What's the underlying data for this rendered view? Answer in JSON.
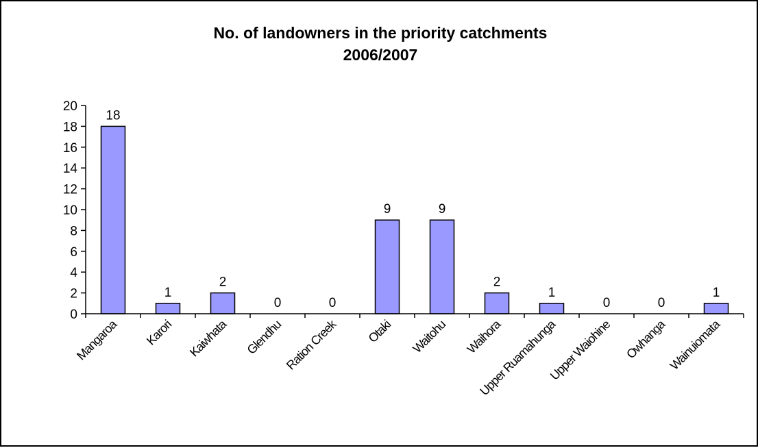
{
  "chart_data": {
    "type": "bar",
    "title": [
      "No. of landowners in the priority catchments",
      "2006/2007"
    ],
    "xlabel": "",
    "ylabel": "",
    "ylim": [
      0,
      20
    ],
    "yticks": [
      0,
      2,
      4,
      6,
      8,
      10,
      12,
      14,
      16,
      18,
      20
    ],
    "categories": [
      "Mangaroa",
      "Karori",
      "Kaiwhata",
      "Glendhu",
      "Ration Creek",
      "Otaki",
      "Waitohu",
      "Waihora",
      "Upper Ruamahunga",
      "Upper Waiohine",
      "Owhanga",
      "Wainuiomata"
    ],
    "values": [
      18,
      1,
      2,
      0,
      0,
      9,
      9,
      2,
      1,
      0,
      0,
      1
    ],
    "data_labels": true,
    "grid": false,
    "legend": "none",
    "bar_color": "#9999ff",
    "bar_edge_color": "#000000"
  }
}
